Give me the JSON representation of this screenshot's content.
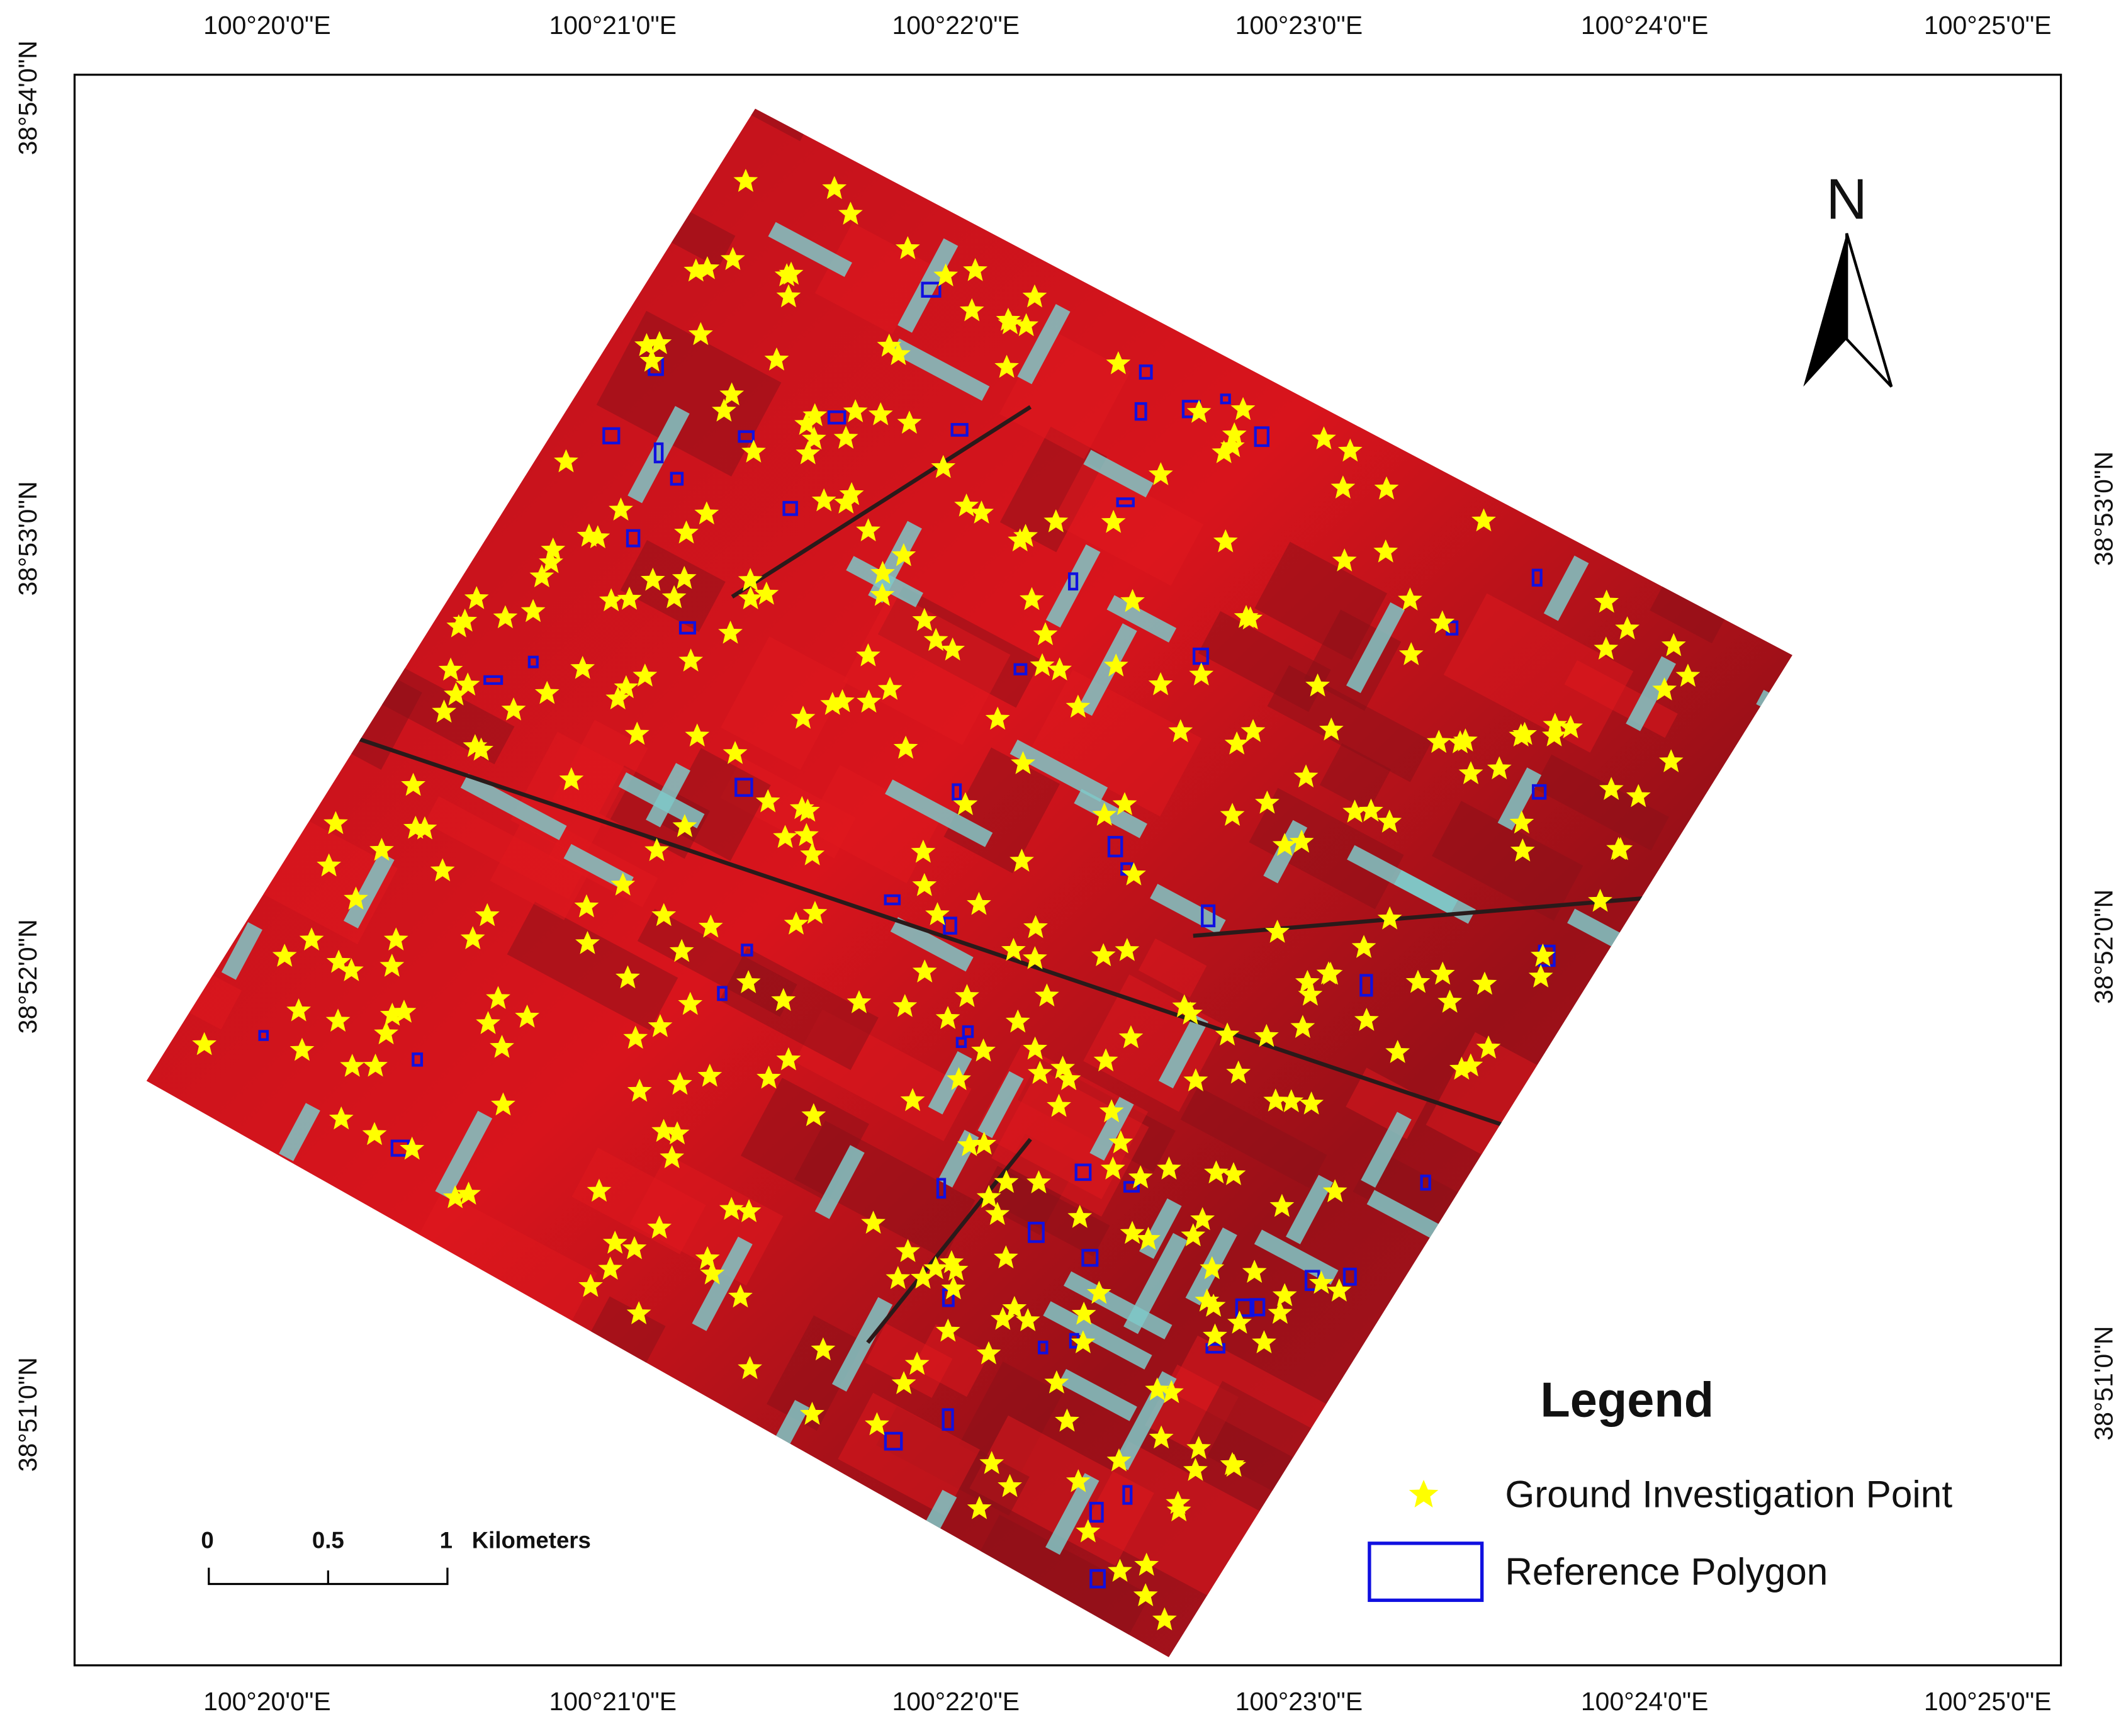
{
  "map": {
    "top_labels": [
      "100°20'0\"E",
      "100°21'0\"E",
      "100°22'0\"E",
      "100°23'0\"E",
      "100°24'0\"E",
      "100°25'0\"E"
    ],
    "bottom_labels": [
      "100°20'0\"E",
      "100°21'0\"E",
      "100°22'0\"E",
      "100°23'0\"E",
      "100°24'0\"E",
      "100°25'0\"E"
    ],
    "left_labels": [
      "38°54'0\"N",
      "38°53'0\"N",
      "38°52'0\"N",
      "38°51'0\"N"
    ],
    "right_labels": [
      "38°53'0\"N",
      "38°52'0\"N",
      "38°51'0\"N"
    ],
    "north": "N",
    "legend": {
      "title": "Legend",
      "items": [
        "Ground Investigation Point",
        "Reference Polygon"
      ]
    },
    "scale_bar": {
      "labels": [
        "0",
        "0.5",
        "1"
      ],
      "unit": "Kilometers"
    }
  }
}
